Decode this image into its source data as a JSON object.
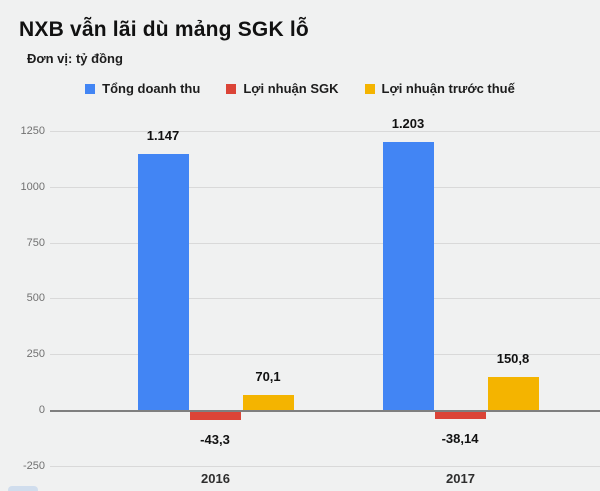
{
  "title": "NXB vẫn lãi dù mảng SGK lỗ",
  "subtitle": "Đơn vị: tỷ đồng",
  "colors": {
    "revenue": "#4285f4",
    "sgk": "#db4437",
    "pretax": "#f4b400",
    "background": "#f0f1f1",
    "grid": "#d9d9d9",
    "zero_line": "#7f7f7f",
    "axis_text": "#717171",
    "label_text": "#111111"
  },
  "chart_data": {
    "type": "bar",
    "categories": [
      "2016",
      "2017"
    ],
    "series": [
      {
        "name": "Tổng doanh thu",
        "color_key": "revenue",
        "values": [
          1147,
          1203
        ],
        "labels": [
          "1.147",
          "1.203"
        ]
      },
      {
        "name": "Lợi nhuận SGK",
        "color_key": "sgk",
        "values": [
          -43.3,
          -38.14
        ],
        "labels": [
          "-43,3",
          "-38,14"
        ]
      },
      {
        "name": "Lợi nhuận trước thuế",
        "color_key": "pretax",
        "values": [
          70.1,
          150.8
        ],
        "labels": [
          "70,1",
          "150,8"
        ]
      }
    ],
    "ylim": [
      -250,
      1250
    ],
    "yticks": [
      1250,
      1000,
      750,
      500,
      250,
      0,
      -250
    ],
    "ytick_labels": [
      "1250",
      "1000",
      "750",
      "500",
      "250",
      "0",
      "-250"
    ],
    "grid": true,
    "legend_position": "top"
  }
}
